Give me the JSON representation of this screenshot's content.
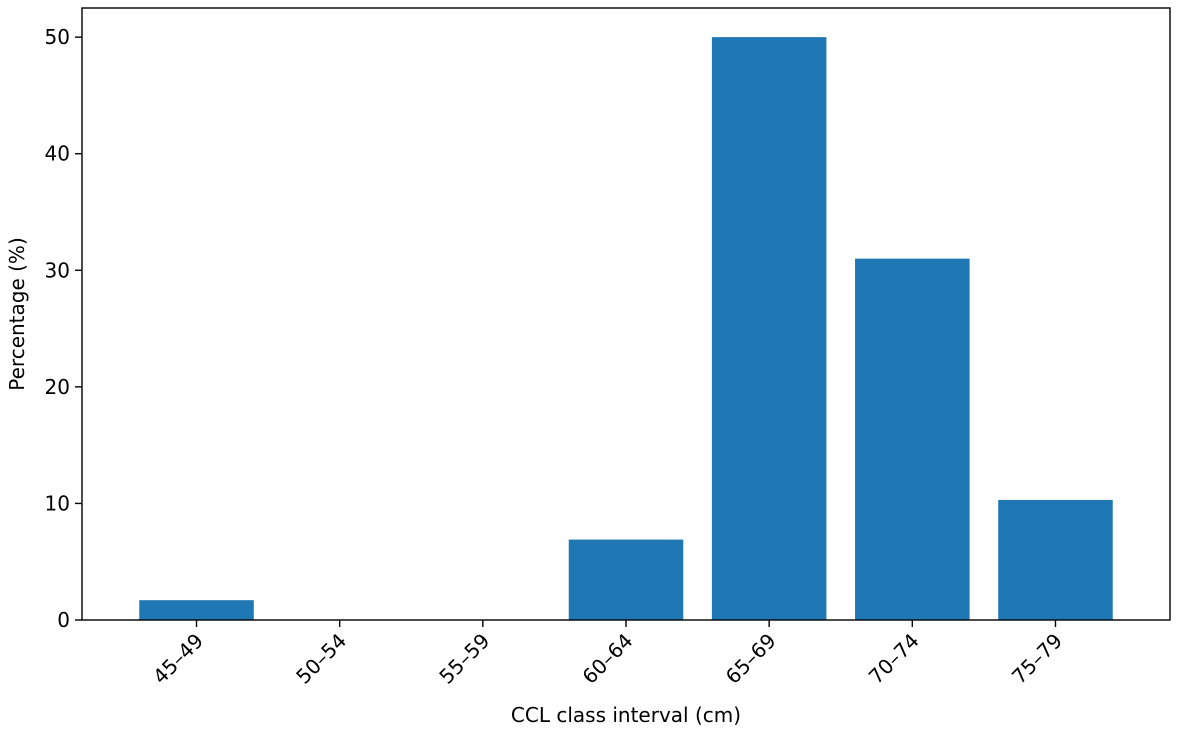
{
  "chart_data": {
    "type": "bar",
    "title": "",
    "xlabel": "CCL class interval (cm)",
    "ylabel": "Percentage (%)",
    "categories": [
      "45–49",
      "50–54",
      "55–59",
      "60–64",
      "65–69",
      "70–74",
      "75–79"
    ],
    "values": [
      1.7,
      0,
      0,
      6.9,
      50.0,
      31.0,
      10.3
    ],
    "ylim": [
      0,
      52.5
    ],
    "yticks": [
      0,
      10,
      20,
      30,
      40,
      50
    ],
    "grid": false,
    "legend": "none",
    "bar_color": "#1f77b4",
    "x_tick_rotation": "45"
  }
}
